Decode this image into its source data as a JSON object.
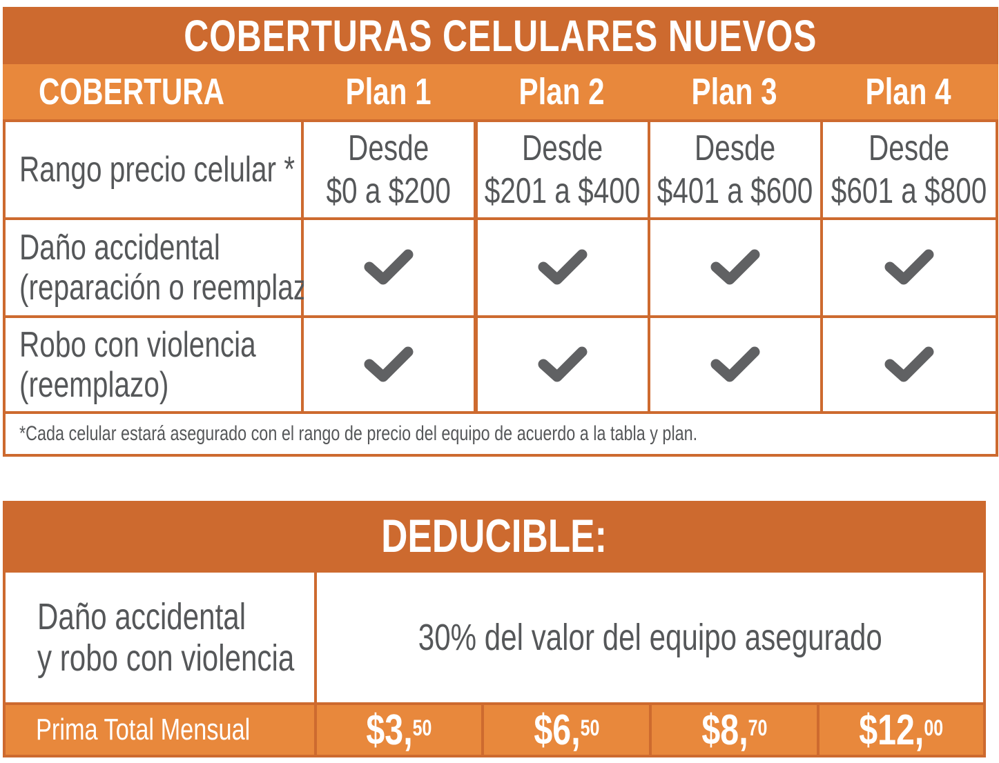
{
  "coverage_table": {
    "title": "COBERTURAS CELULARES NUEVOS",
    "header": {
      "coverage_label": "COBERTURA",
      "plans": [
        "Plan 1",
        "Plan 2",
        "Plan 3",
        "Plan 4"
      ]
    },
    "rows": [
      {
        "label": "Rango precio celular *",
        "plans": [
          {
            "line1": "Desde",
            "line2": "$0 a $200"
          },
          {
            "line1": "Desde",
            "line2": "$201 a $400"
          },
          {
            "line1": "Desde",
            "line2": "$401 a $600"
          },
          {
            "line1": "Desde",
            "line2": "$601 a $800"
          }
        ]
      },
      {
        "label_line1": "Daño accidental",
        "label_line2": "(reparación o reemplazo)",
        "included": [
          true,
          true,
          true,
          true
        ]
      },
      {
        "label_line1": "Robo con violencia",
        "label_line2": "(reemplazo)",
        "included": [
          true,
          true,
          true,
          true
        ]
      }
    ],
    "note": "*Cada celular estará asegurado con el rango de precio del equipo de acuerdo a la tabla y plan."
  },
  "deductible_table": {
    "title": "DEDUCIBLE:",
    "label_line1": "Daño accidental",
    "label_line2": "y robo con violencia",
    "value": "30% del valor del equipo asegurado",
    "premium_label": "Prima Total Mensual",
    "premiums": [
      {
        "main": "$3,",
        "cents": "50"
      },
      {
        "main": "$6,",
        "cents": "50"
      },
      {
        "main": "$8,",
        "cents": "70"
      },
      {
        "main": "$12,",
        "cents": "00"
      }
    ]
  },
  "colors": {
    "dark_orange": "#cd6a2f",
    "light_orange": "#e8883c",
    "text_gray": "#555759",
    "check_gray": "#606163"
  }
}
